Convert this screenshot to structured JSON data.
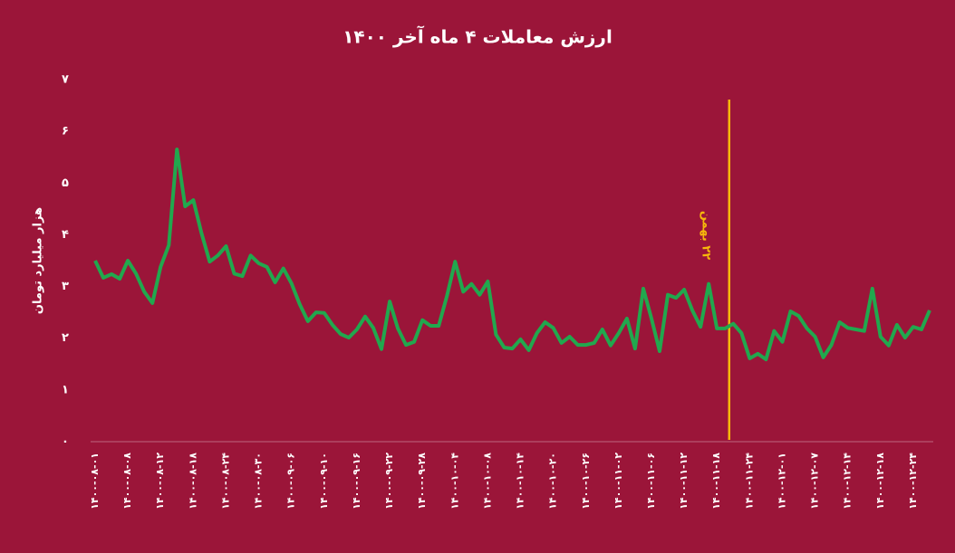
{
  "chart_data": {
    "type": "line",
    "title": "ارزش معاملات ۴ ماه آخر ۱۴۰۰",
    "y_label": "هزار میلیارد تومان",
    "categories": [
      "۱۴۰۰-۰۸-۰۱",
      null,
      null,
      null,
      "۱۴۰۰-۰۸-۰۸",
      null,
      null,
      null,
      "۱۴۰۰-۰۸-۱۲",
      null,
      null,
      null,
      "۱۴۰۰-۰۸-۱۸",
      null,
      null,
      null,
      "۱۴۰۰-۰۸-۲۴",
      null,
      null,
      null,
      "۱۴۰۰-۰۸-۳۰",
      null,
      null,
      null,
      "۱۴۰۰-۰۹-۰۶",
      null,
      null,
      null,
      "۱۴۰۰-۰۹-۱۰",
      null,
      null,
      null,
      "۱۴۰۰-۰۹-۱۶",
      null,
      null,
      null,
      "۱۴۰۰-۰۹-۲۲",
      null,
      null,
      null,
      "۱۴۰۰-۰۹-۲۸",
      null,
      null,
      null,
      "۱۴۰۰-۱۰-۰۴",
      null,
      null,
      null,
      "۱۴۰۰-۱۰-۰۸",
      null,
      null,
      null,
      "۱۴۰۰-۱۰-۱۴",
      null,
      null,
      null,
      "۱۴۰۰-۱۰-۲۰",
      null,
      null,
      null,
      "۱۴۰۰-۱۰-۲۶",
      null,
      null,
      null,
      "۱۴۰۰-۱۱-۰۲",
      null,
      null,
      null,
      "۱۴۰۰-۱۱-۰۶",
      null,
      null,
      null,
      "۱۴۰۰-۱۱-۱۲",
      null,
      null,
      null,
      "۱۴۰۰-۱۱-۱۸",
      null,
      null,
      null,
      "۱۴۰۰-۱۱-۲۴",
      null,
      null,
      null,
      "۱۴۰۰-۱۲-۰۱",
      null,
      null,
      null,
      "۱۴۰۰-۱۲-۰۷",
      null,
      null,
      null,
      "۱۴۰۰-۱۲-۱۴",
      null,
      null,
      null,
      "۱۴۰۰-۱۲-۱۸",
      null,
      null,
      null,
      "۱۴۰۰-۱۲-۲۴",
      null,
      null
    ],
    "values": [
      3.5,
      3.17,
      3.24,
      3.15,
      3.5,
      3.25,
      2.9,
      2.68,
      3.38,
      3.8,
      5.65,
      4.55,
      4.67,
      4.03,
      3.48,
      3.6,
      3.78,
      3.25,
      3.2,
      3.6,
      3.45,
      3.38,
      3.08,
      3.35,
      3.06,
      2.66,
      2.33,
      2.5,
      2.49,
      2.26,
      2.08,
      2.01,
      2.17,
      2.42,
      2.2,
      1.79,
      2.71,
      2.19,
      1.87,
      1.93,
      2.35,
      2.24,
      2.24,
      2.82,
      3.48,
      2.9,
      3.05,
      2.84,
      3.1,
      2.07,
      1.82,
      1.8,
      1.98,
      1.77,
      2.1,
      2.31,
      2.2,
      1.91,
      2.03,
      1.87,
      1.87,
      1.91,
      2.17,
      1.86,
      2.1,
      2.38,
      1.8,
      2.96,
      2.38,
      1.75,
      2.84,
      2.78,
      2.94,
      2.54,
      2.22,
      3.05,
      2.19,
      2.19,
      2.28,
      2.1,
      1.61,
      1.7,
      1.59,
      2.14,
      1.93,
      2.52,
      2.43,
      2.19,
      2.03,
      1.63,
      1.87,
      2.31,
      2.2,
      2.17,
      2.14,
      2.96,
      2.03,
      1.86,
      2.26,
      2.01,
      2.22,
      2.17,
      2.54
    ],
    "color": "#21a84e",
    "ylim": [
      0,
      7
    ],
    "yticks": [
      {
        "value": 0,
        "label": "۰"
      },
      {
        "value": 1,
        "label": "۱"
      },
      {
        "value": 2,
        "label": "۲"
      },
      {
        "value": 3,
        "label": "۳"
      },
      {
        "value": 4,
        "label": "۴"
      },
      {
        "value": 5,
        "label": "۵"
      },
      {
        "value": 6,
        "label": "۶"
      },
      {
        "value": 7,
        "label": "۷"
      }
    ],
    "annotation": {
      "text": "۲۲ بهمن",
      "at": 77.5,
      "color": "#f6b80b"
    }
  }
}
